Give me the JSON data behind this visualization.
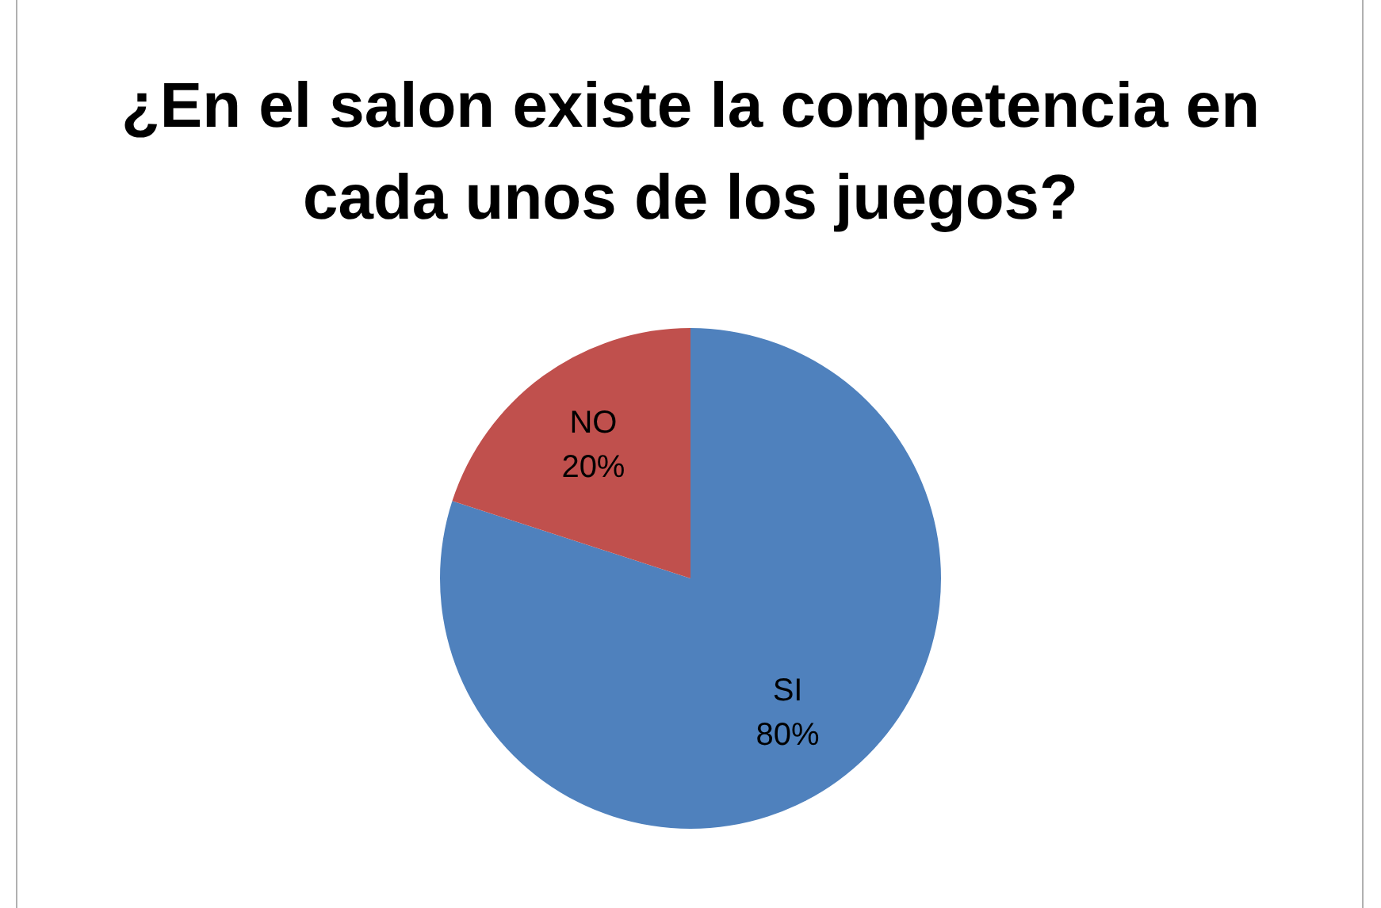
{
  "chart_data": {
    "type": "pie",
    "title": "¿En el salon existe la competencia en cada unos de los juegos?",
    "categories": [
      "SI",
      "NO"
    ],
    "values": [
      80,
      20
    ],
    "colors": [
      "#4f81bd",
      "#c0504d"
    ],
    "value_labels": [
      "80%",
      "20%"
    ],
    "legend": false
  }
}
